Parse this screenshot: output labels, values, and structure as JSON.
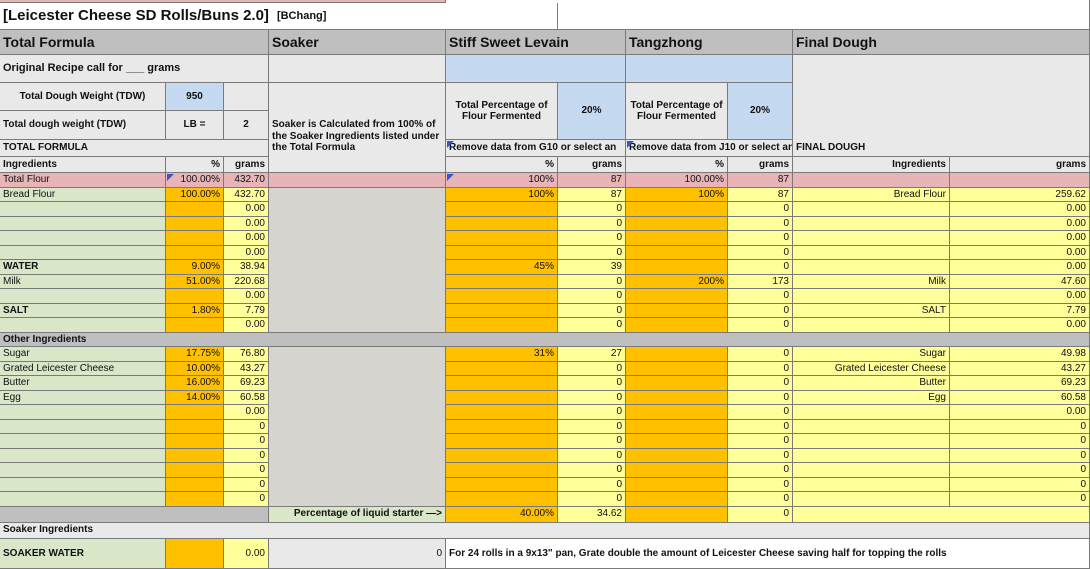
{
  "title": {
    "main": "[Leicester Cheese SD Rolls/Buns 2.0]",
    "author": "[BChang]"
  },
  "headers": {
    "total_formula": "Total Formula",
    "soaker": "Soaker",
    "levain": "Stiff Sweet Levain",
    "tangzhong": "Tangzhong",
    "final_dough": "Final Dough"
  },
  "original_recipe": "Original Recipe call for ___ grams",
  "tdw_label": "Total Dough Weight (TDW)",
  "tdw_value": "950",
  "tdw_lb_label": "Total dough weight (TDW)",
  "lb_label": "LB  =",
  "lb_value": "2",
  "soaker_note": "Soaker is Calculated from 100% of the Soaker Ingredients listed under the Total Formula",
  "levain_pct_label": "Total Percentage of Flour Fermented",
  "levain_pct": "20%",
  "tang_pct_label": "Total Percentage of Flour Fermented",
  "tang_pct": "20%",
  "levain_remove": "Remove data from G10 or select an",
  "tang_remove": "Remove data from J10 or select an",
  "total_formula_label": "TOTAL FORMULA",
  "final_dough_label": "FINAL DOUGH",
  "col": {
    "ingredients": "Ingredients",
    "pct": "%",
    "grams": "grams"
  },
  "tf_rows": [
    {
      "name": "Total Flour",
      "pct": "100.00%",
      "grams": "432.70"
    },
    {
      "name": "Bread Flour",
      "pct": "100.00%",
      "grams": "432.70"
    },
    {
      "name": "",
      "pct": "",
      "grams": "0.00"
    },
    {
      "name": "",
      "pct": "",
      "grams": "0.00"
    },
    {
      "name": "",
      "pct": "",
      "grams": "0.00"
    },
    {
      "name": "",
      "pct": "",
      "grams": "0.00"
    },
    {
      "name": "WATER",
      "pct": "9.00%",
      "grams": "38.94"
    },
    {
      "name": "Milk",
      "pct": "51.00%",
      "grams": "220.68"
    },
    {
      "name": "",
      "pct": "",
      "grams": "0.00"
    },
    {
      "name": "SALT",
      "pct": "1.80%",
      "grams": "7.79"
    },
    {
      "name": "",
      "pct": "",
      "grams": "0.00"
    },
    {
      "name": "Other Ingredients",
      "pct": "",
      "grams": ""
    },
    {
      "name": "Sugar",
      "pct": "17.75%",
      "grams": "76.80"
    },
    {
      "name": "Grated Leicester Cheese",
      "pct": "10.00%",
      "grams": "43.27"
    },
    {
      "name": "Butter",
      "pct": "16.00%",
      "grams": "69.23"
    },
    {
      "name": "Egg",
      "pct": "14.00%",
      "grams": "60.58"
    },
    {
      "name": "",
      "pct": "",
      "grams": "0.00"
    },
    {
      "name": "",
      "pct": "",
      "grams": "0"
    },
    {
      "name": "",
      "pct": "",
      "grams": "0"
    },
    {
      "name": "",
      "pct": "",
      "grams": "0"
    },
    {
      "name": "",
      "pct": "",
      "grams": "0"
    },
    {
      "name": "",
      "pct": "",
      "grams": "0"
    },
    {
      "name": "",
      "pct": "",
      "grams": "0"
    }
  ],
  "levain_rows": [
    {
      "pct": "100%",
      "grams": "87"
    },
    {
      "pct": "100%",
      "grams": "87"
    },
    {
      "pct": "",
      "grams": "0"
    },
    {
      "pct": "",
      "grams": "0"
    },
    {
      "pct": "",
      "grams": "0"
    },
    {
      "pct": "",
      "grams": "0"
    },
    {
      "pct": "45%",
      "grams": "39"
    },
    {
      "pct": "",
      "grams": "0"
    },
    {
      "pct": "",
      "grams": "0"
    },
    {
      "pct": "",
      "grams": "0"
    },
    {
      "pct": "",
      "grams": "0"
    },
    {
      "pct": "",
      "grams": ""
    },
    {
      "pct": "31%",
      "grams": "27"
    },
    {
      "pct": "",
      "grams": "0"
    },
    {
      "pct": "",
      "grams": "0"
    },
    {
      "pct": "",
      "grams": "0"
    },
    {
      "pct": "",
      "grams": "0"
    },
    {
      "pct": "",
      "grams": "0"
    },
    {
      "pct": "",
      "grams": "0"
    },
    {
      "pct": "",
      "grams": "0"
    },
    {
      "pct": "",
      "grams": "0"
    },
    {
      "pct": "",
      "grams": "0"
    },
    {
      "pct": "",
      "grams": "0"
    }
  ],
  "tang_rows": [
    {
      "pct": "100.00%",
      "grams": "87"
    },
    {
      "pct": "100%",
      "grams": "87"
    },
    {
      "pct": "",
      "grams": "0"
    },
    {
      "pct": "",
      "grams": "0"
    },
    {
      "pct": "",
      "grams": "0"
    },
    {
      "pct": "",
      "grams": "0"
    },
    {
      "pct": "",
      "grams": "0"
    },
    {
      "pct": "200%",
      "grams": "173"
    },
    {
      "pct": "",
      "grams": "0"
    },
    {
      "pct": "",
      "grams": "0"
    },
    {
      "pct": "",
      "grams": "0"
    },
    {
      "pct": "",
      "grams": ""
    },
    {
      "pct": "",
      "grams": "0"
    },
    {
      "pct": "",
      "grams": "0"
    },
    {
      "pct": "",
      "grams": "0"
    },
    {
      "pct": "",
      "grams": "0"
    },
    {
      "pct": "",
      "grams": "0"
    },
    {
      "pct": "",
      "grams": "0"
    },
    {
      "pct": "",
      "grams": "0"
    },
    {
      "pct": "",
      "grams": "0"
    },
    {
      "pct": "",
      "grams": "0"
    },
    {
      "pct": "",
      "grams": "0"
    },
    {
      "pct": "",
      "grams": "0"
    }
  ],
  "fd_rows": [
    {
      "name": "",
      "grams": ""
    },
    {
      "name": "Bread Flour",
      "grams": "259.62"
    },
    {
      "name": "",
      "grams": "0.00"
    },
    {
      "name": "",
      "grams": "0.00"
    },
    {
      "name": "",
      "grams": "0.00"
    },
    {
      "name": "",
      "grams": "0.00"
    },
    {
      "name": "",
      "grams": "0.00"
    },
    {
      "name": "Milk",
      "grams": "47.60"
    },
    {
      "name": "",
      "grams": "0.00"
    },
    {
      "name": "SALT",
      "grams": "7.79"
    },
    {
      "name": "",
      "grams": "0.00"
    },
    {
      "name": "",
      "grams": ""
    },
    {
      "name": "Sugar",
      "grams": "49.98"
    },
    {
      "name": "Grated Leicester Cheese",
      "grams": "43.27"
    },
    {
      "name": "Butter",
      "grams": "69.23"
    },
    {
      "name": "Egg",
      "grams": "60.58"
    },
    {
      "name": "",
      "grams": "0.00"
    },
    {
      "name": "",
      "grams": "0"
    },
    {
      "name": "",
      "grams": "0"
    },
    {
      "name": "",
      "grams": "0"
    },
    {
      "name": "",
      "grams": "0"
    },
    {
      "name": "",
      "grams": "0"
    },
    {
      "name": "",
      "grams": "0"
    }
  ],
  "liquid_starter_label": "Percentage of liquid starter —>",
  "liquid_starter_pct": "40.00%",
  "liquid_starter_grams": "34.62",
  "soaker_ingredients_label": "Soaker Ingredients",
  "soaker_water": {
    "name": "SOAKER WATER",
    "grams": "0.00",
    "soaker_grams": "0"
  },
  "note": "For 24 rolls in a 9x13\" pan, Grate double the amount of Leicester Cheese saving half for topping the rolls",
  "colors": {
    "header_gray": "#bfbfbf",
    "ingredient_green": "#d9e6c7",
    "pct_orange": "#ffc000",
    "final_yellow": "#ffff99",
    "total_flour_pink": "#e8b4b8",
    "percent_blue": "#c5d9f1",
    "comment_marker_blue": "#3a55c8"
  }
}
